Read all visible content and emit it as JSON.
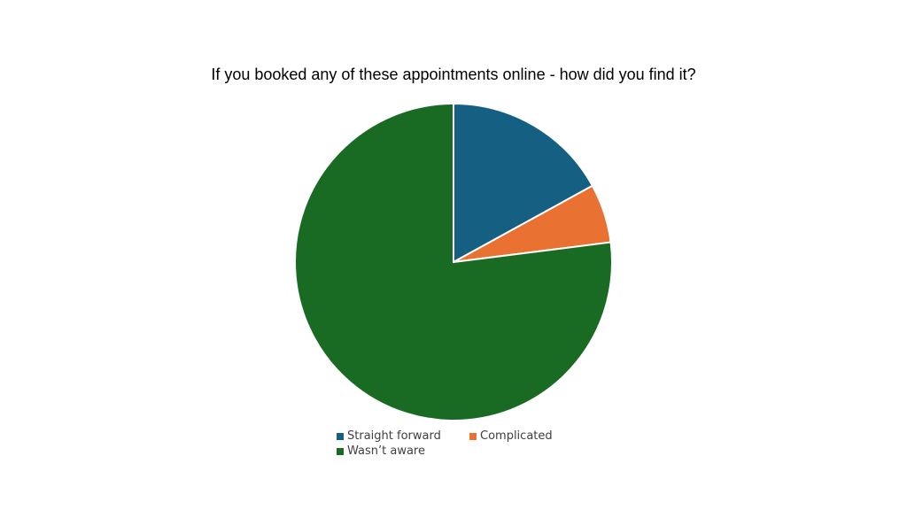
{
  "chart_data": {
    "type": "pie",
    "title": "If you booked any of these appointments online - how did you find it?",
    "categories": [
      "Straight forward",
      "Complicated",
      "Wasn’t aware"
    ],
    "values": [
      17,
      6,
      77
    ],
    "colors": [
      "#156082",
      "#E97132",
      "#196B24"
    ],
    "legend_position": "bottom"
  }
}
